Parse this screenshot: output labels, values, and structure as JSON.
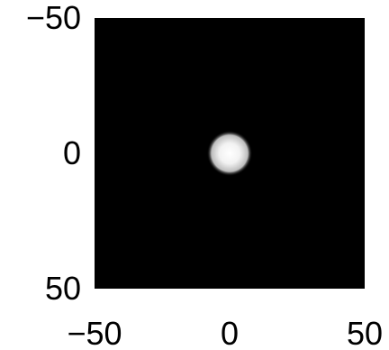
{
  "chart_data": {
    "type": "heatmap",
    "title": "",
    "xlabel": "",
    "ylabel": "",
    "xlim": [
      -50,
      50
    ],
    "ylim": [
      -50,
      50
    ],
    "y_direction": "down",
    "x_ticks": [
      {
        "value": -50,
        "label": "−50"
      },
      {
        "value": 0,
        "label": "0"
      },
      {
        "value": 50,
        "label": "50"
      }
    ],
    "y_ticks": [
      {
        "value": -50,
        "label": "−50"
      },
      {
        "value": 0,
        "label": "0"
      },
      {
        "value": 50,
        "label": "50"
      }
    ],
    "colormap": "gray",
    "background_color": "#000000",
    "peak_color": "#ffffff",
    "blob": {
      "center_x": 0,
      "center_y": 0,
      "radius": 8
    }
  }
}
